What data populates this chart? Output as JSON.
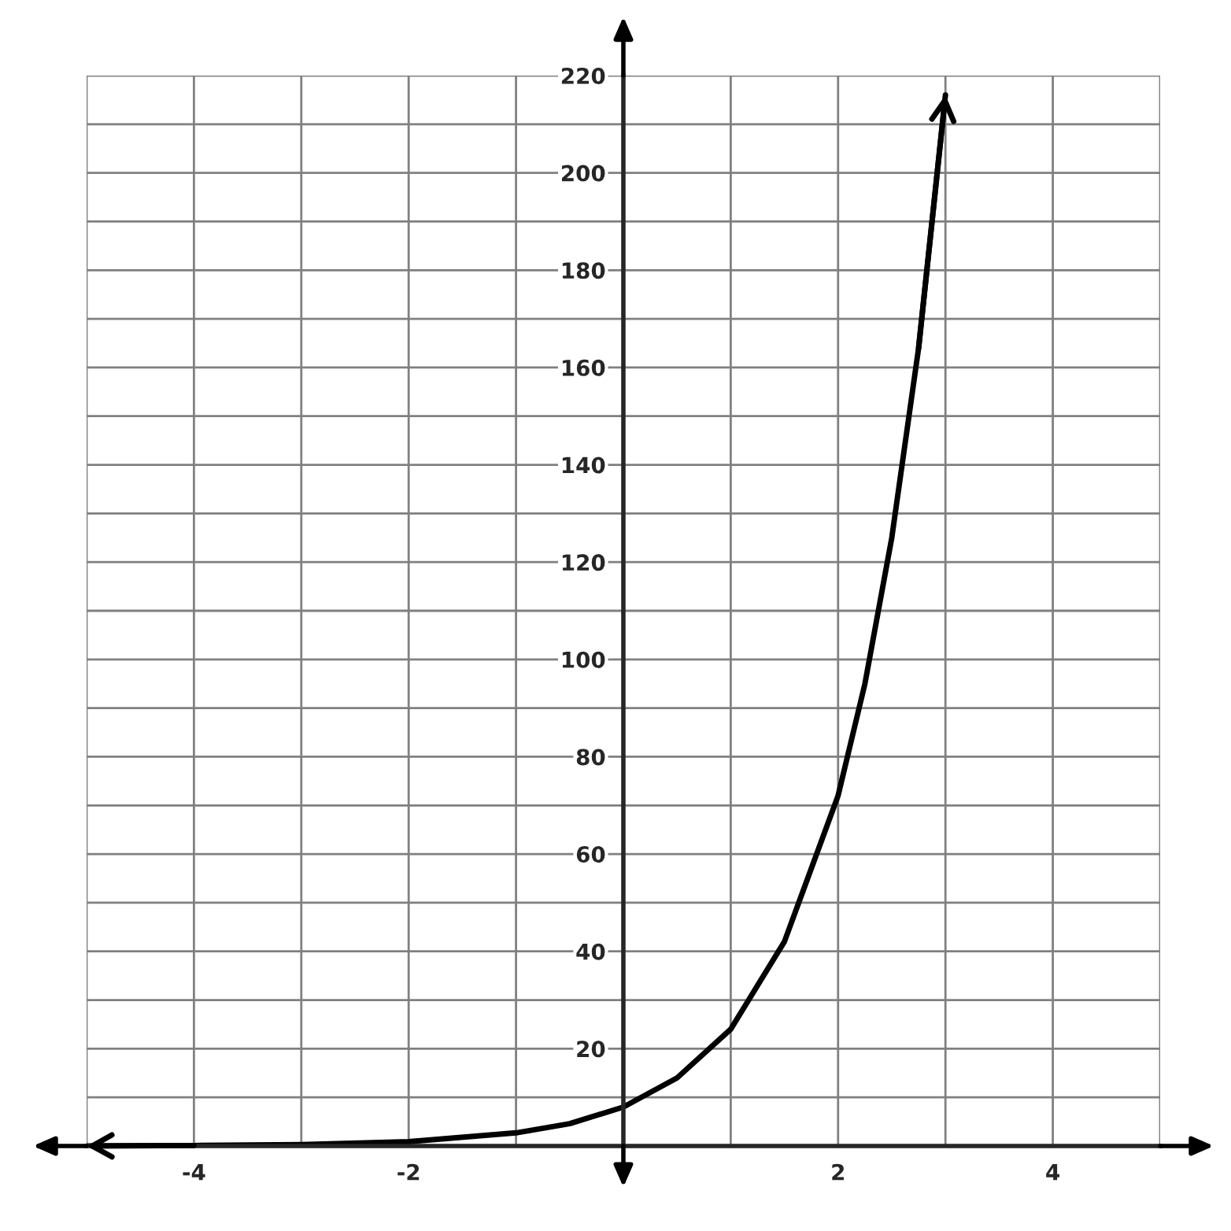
{
  "chart_data": {
    "type": "line",
    "x": [
      -5,
      -4,
      -3,
      -2,
      -1,
      -0.5,
      0,
      0.5,
      1,
      1.5,
      2,
      2.25,
      2.5,
      2.75,
      3
    ],
    "series": [
      {
        "color": "#000000",
        "values": [
          0,
          0.1,
          0.3,
          0.9,
          2.7,
          4.6,
          8,
          14,
          24,
          42,
          72,
          95,
          125,
          164,
          216
        ]
      }
    ],
    "xlim": [
      -5,
      5
    ],
    "ylim": [
      0,
      220
    ],
    "xticks": [
      {
        "value": -5,
        "label": null
      },
      -4,
      {
        "value": -3,
        "label": null
      },
      -2,
      {
        "value": -1,
        "label": null
      },
      {
        "value": 0,
        "label": null
      },
      {
        "value": 1,
        "label": null
      },
      2,
      {
        "value": 3,
        "label": null
      },
      4,
      {
        "value": 5,
        "label": null
      }
    ],
    "yticks": [
      {
        "value": 0,
        "label": null
      },
      {
        "value": 10,
        "label": null
      },
      20,
      {
        "value": 30,
        "label": null
      },
      40,
      {
        "value": 50,
        "label": null
      },
      60,
      {
        "value": 70,
        "label": null
      },
      80,
      {
        "value": 90,
        "label": null
      },
      100,
      {
        "value": 110,
        "label": null
      },
      120,
      {
        "value": 130,
        "label": null
      },
      140,
      {
        "value": 150,
        "label": null
      },
      160,
      {
        "value": 170,
        "label": null
      },
      180,
      {
        "value": 190,
        "label": null
      },
      200,
      {
        "value": 210,
        "label": null
      },
      220
    ],
    "grid": true,
    "legend": false,
    "marker": "none",
    "line_style": "solid"
  }
}
